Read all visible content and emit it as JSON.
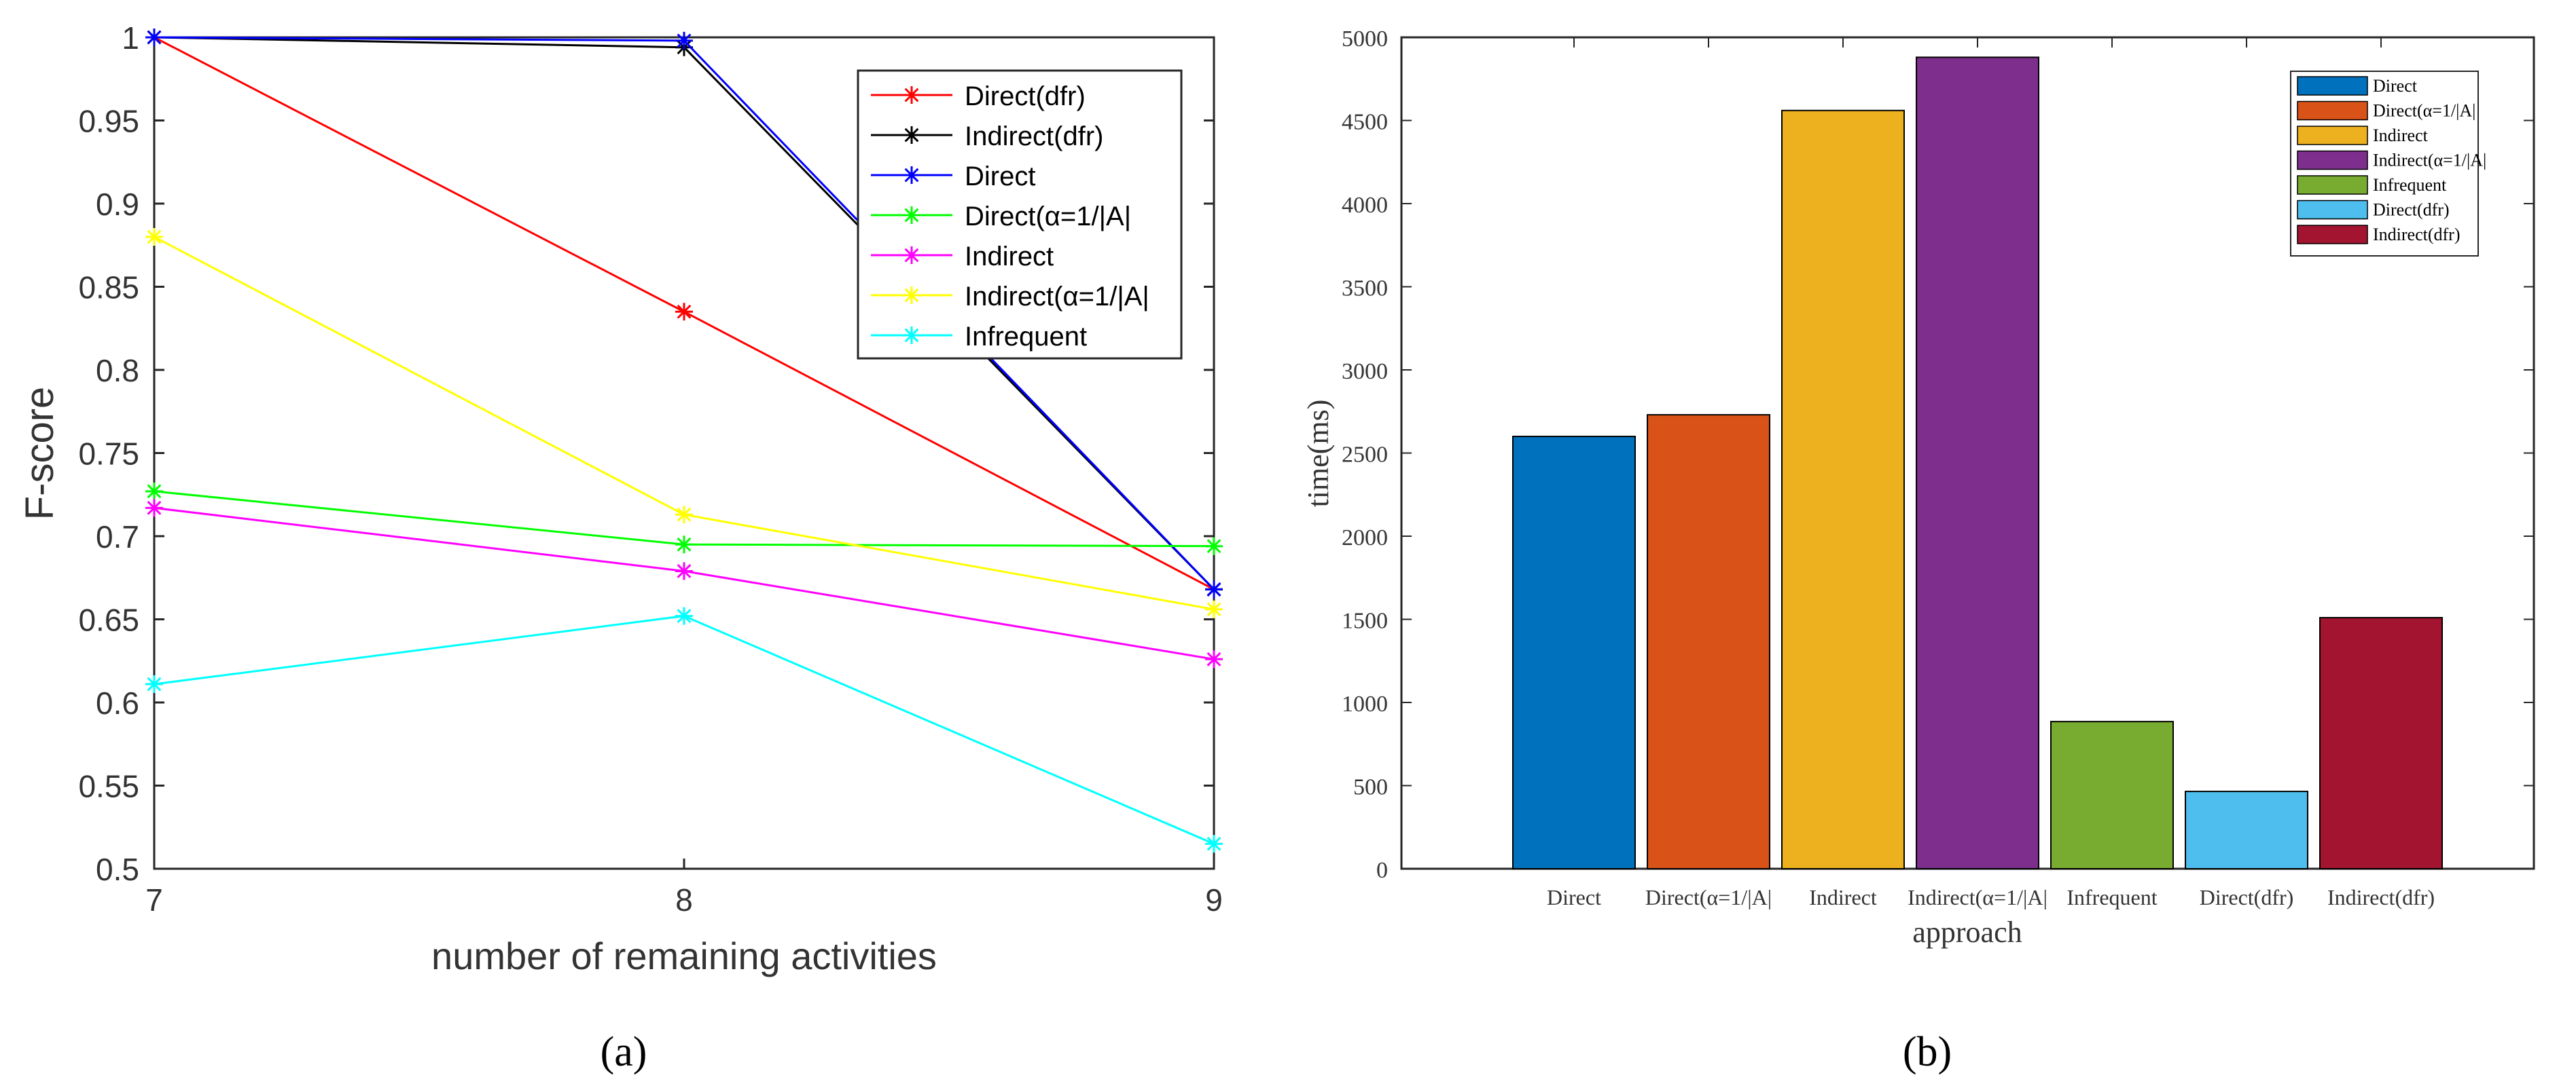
{
  "figure": {
    "panel_a_caption": "(a)",
    "panel_b_caption": "(b)"
  },
  "chart_data": [
    {
      "type": "line",
      "ylabel": "F-score",
      "xlabel": "number of remaining activities",
      "x": [
        7,
        8,
        9
      ],
      "xlim": [
        7,
        9
      ],
      "ylim": [
        0.5,
        1.0
      ],
      "xticks": [
        "7",
        "8",
        "9"
      ],
      "yticks": [
        "0.5",
        "0.55",
        "0.6",
        "0.65",
        "0.7",
        "0.75",
        "0.8",
        "0.85",
        "0.9",
        "0.95",
        "1"
      ],
      "legend_position": "top-right",
      "series": [
        {
          "name": "Direct(dfr)",
          "color": "#ff0000",
          "values": [
            1.0,
            0.835,
            0.668
          ]
        },
        {
          "name": "Indirect(dfr)",
          "color": "#000000",
          "values": [
            1.0,
            0.994,
            0.668
          ]
        },
        {
          "name": "Direct",
          "color": "#0000ff",
          "values": [
            1.0,
            0.998,
            0.668
          ]
        },
        {
          "name": "Direct(α=1/|A|",
          "color": "#00ff00",
          "values": [
            0.727,
            0.695,
            0.694
          ]
        },
        {
          "name": "Indirect",
          "color": "#ff00ff",
          "values": [
            0.717,
            0.679,
            0.626
          ]
        },
        {
          "name": "Indirect(α=1/|A|",
          "color": "#ffff00",
          "values": [
            0.88,
            0.713,
            0.656
          ]
        },
        {
          "name": "Infrequent",
          "color": "#00ffff",
          "values": [
            0.611,
            0.652,
            0.515
          ]
        }
      ]
    },
    {
      "type": "bar",
      "ylabel": "time(ms)",
      "xlabel": "approach",
      "categories": [
        "Direct",
        "Direct(α=1/|A|",
        "Indirect",
        "Indirect(α=1/|A|",
        "Infrequent",
        "Direct(dfr)",
        "Indirect(dfr)"
      ],
      "values": [
        2600,
        2730,
        4560,
        4880,
        885,
        465,
        1510
      ],
      "colors": [
        "#0072bd",
        "#d95319",
        "#edb120",
        "#7e2f8e",
        "#77ac30",
        "#4dbeee",
        "#a2142f"
      ],
      "ylim": [
        0,
        5000
      ],
      "yticks": [
        "0",
        "500",
        "1000",
        "1500",
        "2000",
        "2500",
        "3000",
        "3500",
        "4000",
        "4500",
        "5000"
      ],
      "legend_position": "top-right"
    }
  ]
}
